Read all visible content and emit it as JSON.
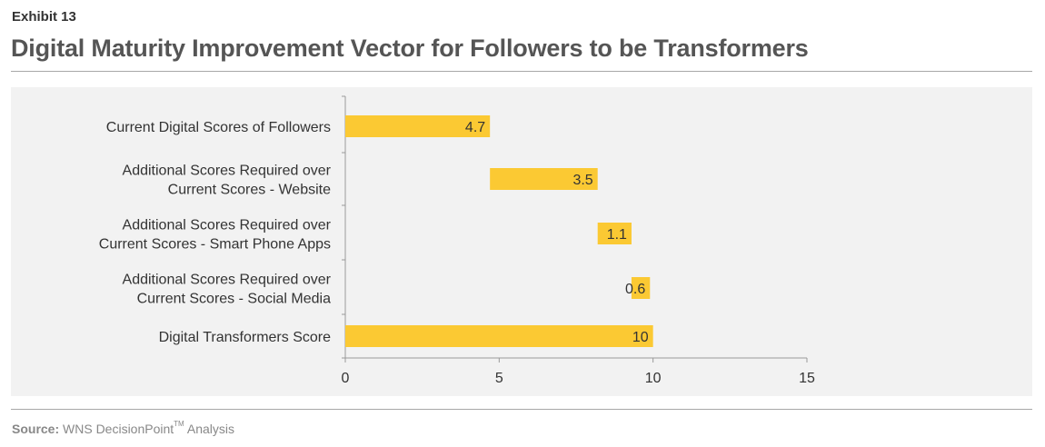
{
  "header": {
    "exhibit": "Exhibit 13",
    "title": "Digital Maturity Improvement Vector for Followers to be Transformers"
  },
  "footer": {
    "source_label": "Source:",
    "source_text": "WNS DecisionPoint",
    "source_tm": "TM",
    "source_suffix": " Analysis"
  },
  "colors": {
    "bar": "#fbc933",
    "panel": "#f2f2f2",
    "axis": "#999999",
    "text": "#333333"
  },
  "chart_data": {
    "type": "bar",
    "orientation": "horizontal",
    "subtype": "waterfall",
    "categories": [
      [
        "Current Digital Scores of Followers"
      ],
      [
        "Additional Scores Required over",
        "Current Scores - Website"
      ],
      [
        "Additional Scores Required over",
        "Current Scores - Smart Phone Apps"
      ],
      [
        "Additional Scores Required over",
        "Current Scores - Social Media"
      ],
      [
        "Digital Transformers Score"
      ]
    ],
    "starts": [
      0,
      4.7,
      8.2,
      9.3,
      0
    ],
    "values": [
      4.7,
      3.5,
      1.1,
      0.6,
      10
    ],
    "data_labels": [
      "4.7",
      "3.5",
      "1.1",
      "0.6",
      "10"
    ],
    "xlim": [
      0,
      15
    ],
    "xticks": [
      0,
      5,
      10,
      15
    ],
    "grid": false,
    "legend": "none"
  }
}
